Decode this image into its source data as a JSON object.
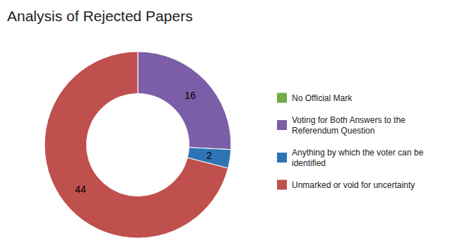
{
  "chart_data": {
    "type": "donut",
    "title": "Analysis of Rejected Papers",
    "categories": [
      "No Official Mark",
      "Voting for Both Answers to the\nReferendum Question",
      "Anything by which the voter can be\nidentified",
      "Unmarked or void for uncertainty"
    ],
    "values": [
      0.0001,
      16,
      2,
      44
    ],
    "colors": [
      "#70AD47",
      "#7B5EA7",
      "#2E74B5",
      "#C0504D"
    ],
    "data_labels": true,
    "value_labels": [
      null,
      "16",
      "2",
      "44"
    ],
    "legend": "right"
  }
}
